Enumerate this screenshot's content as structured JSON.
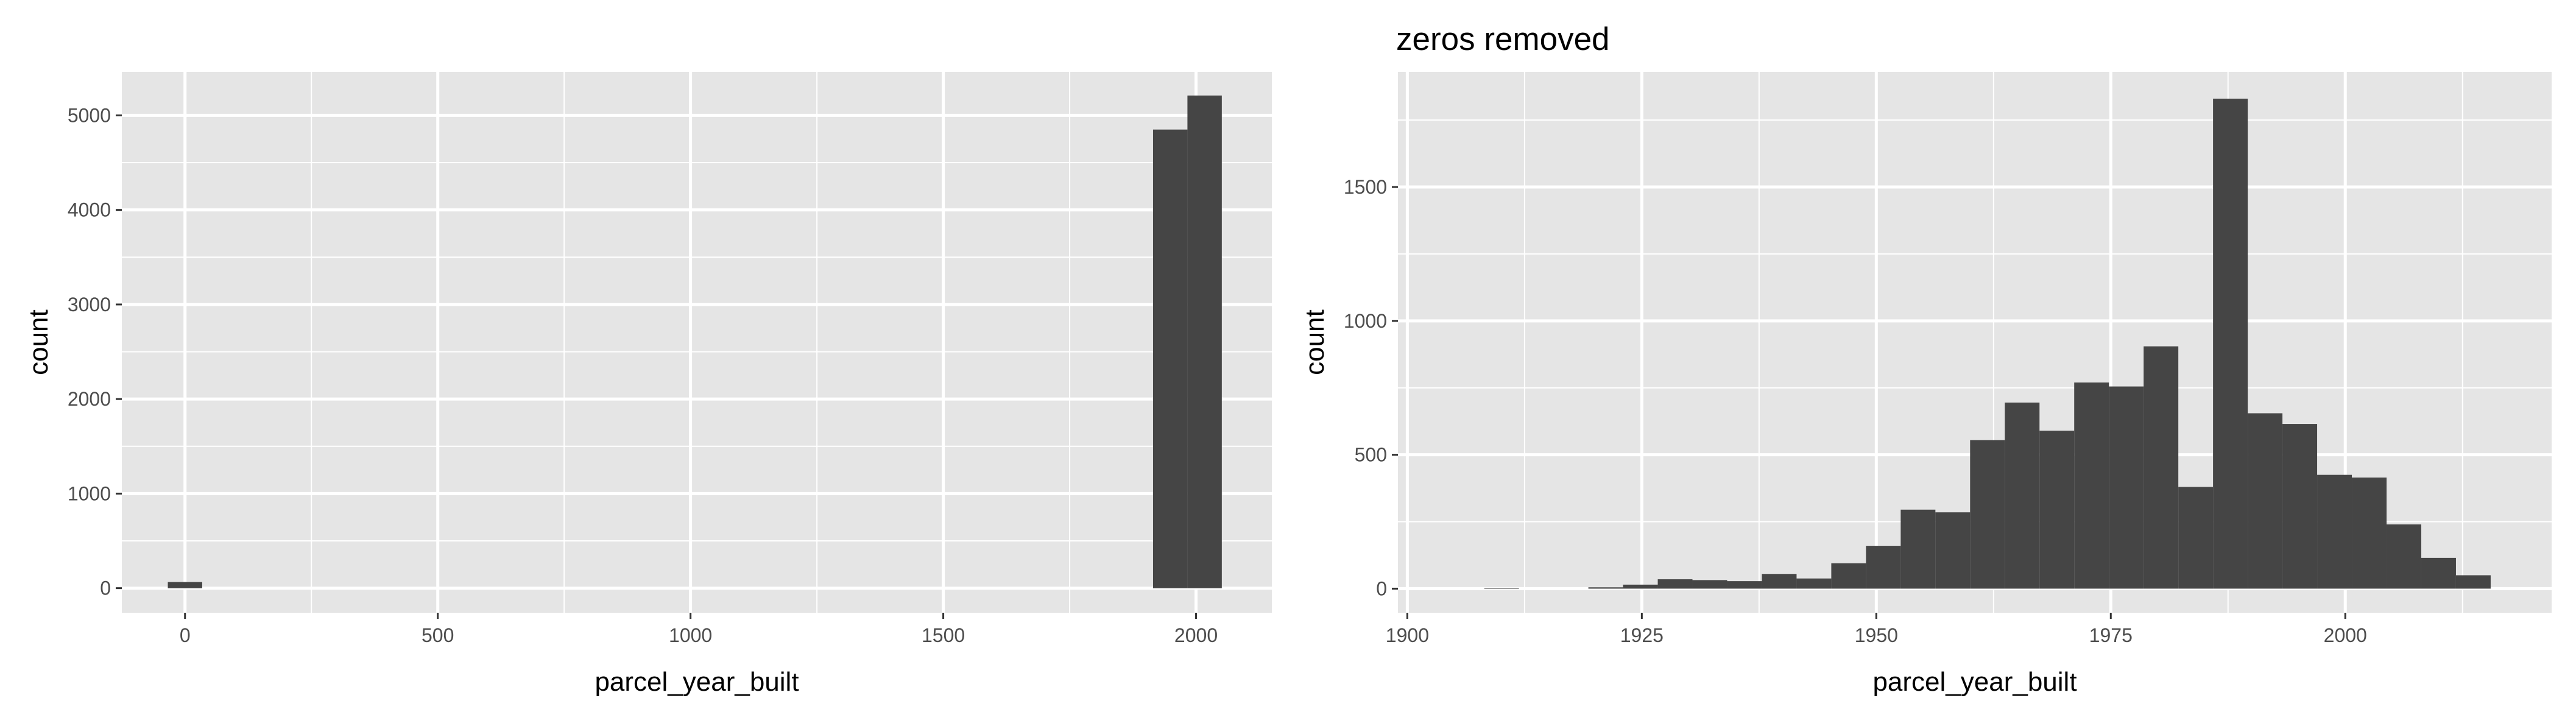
{
  "chart_data": [
    {
      "type": "histogram",
      "title": "",
      "xlabel": "parcel_year_built",
      "ylabel": "count",
      "xlim": [
        -125,
        2150
      ],
      "ylim": [
        -260,
        5460
      ],
      "xticks": [
        0,
        500,
        1000,
        1500,
        2000
      ],
      "xtick_labels": [
        "0",
        "500",
        "1000",
        "1500",
        "2000"
      ],
      "yticks": [
        0,
        1000,
        2000,
        3000,
        4000,
        5000
      ],
      "ytick_labels": [
        "0",
        "1000",
        "2000",
        "3000",
        "4000",
        "5000"
      ],
      "grid": true,
      "bar_color": "#454545",
      "panel_color": "#e5e5e5",
      "bins": [
        {
          "x0": -34,
          "x1": 34,
          "value": 65
        },
        {
          "x0": 1915,
          "x1": 1983,
          "value": 4850
        },
        {
          "x0": 1983,
          "x1": 2051,
          "value": 5210
        }
      ]
    },
    {
      "type": "histogram",
      "title": "zeros removed",
      "xlabel": "parcel_year_built",
      "ylabel": "count",
      "xlim": [
        1899,
        2022
      ],
      "ylim": [
        -90,
        1930
      ],
      "xticks": [
        1900,
        1925,
        1950,
        1975,
        2000
      ],
      "xtick_labels": [
        "1900",
        "1925",
        "1950",
        "1975",
        "2000"
      ],
      "yticks": [
        0,
        500,
        1000,
        1500
      ],
      "ytick_labels": [
        "0",
        "500",
        "1000",
        "1500"
      ],
      "grid": true,
      "bar_color": "#454545",
      "panel_color": "#e5e5e5",
      "bin_start": 1904.5,
      "bin_width": 3.7,
      "values": [
        0,
        2,
        0,
        0,
        5,
        15,
        35,
        32,
        28,
        55,
        38,
        95,
        160,
        295,
        285,
        555,
        695,
        590,
        770,
        755,
        905,
        380,
        1830,
        655,
        615,
        425,
        415,
        240,
        115,
        50
      ]
    }
  ]
}
